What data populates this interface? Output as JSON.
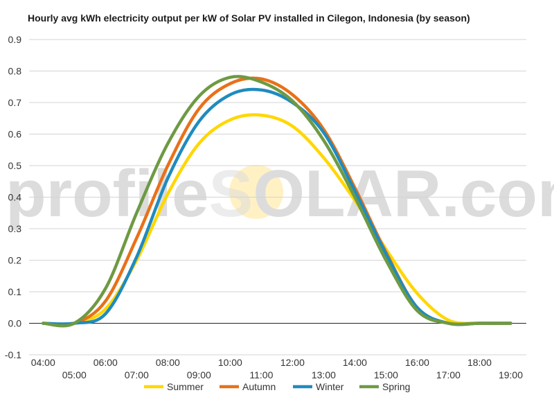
{
  "chart_data": {
    "type": "line",
    "title": "Hourly avg kWh electricity output per kW of Solar PV installed in Cilegon, Indonesia (by season)",
    "xlabel": "",
    "ylabel": "",
    "x": [
      4,
      5,
      6,
      7,
      8,
      9,
      10,
      11,
      12,
      13,
      14,
      15,
      16,
      17,
      18,
      19
    ],
    "x_tick_labels": [
      "04:00",
      "05:00",
      "06:00",
      "07:00",
      "08:00",
      "09:00",
      "10:00",
      "11:00",
      "12:00",
      "13:00",
      "14:00",
      "15:00",
      "16:00",
      "17:00",
      "18:00",
      "19:00"
    ],
    "xlim": [
      3.55,
      19.5
    ],
    "ylim": [
      -0.1,
      0.9
    ],
    "y_ticks": [
      -0.1,
      0.0,
      0.1,
      0.2,
      0.3,
      0.4,
      0.5,
      0.6,
      0.7,
      0.8,
      0.9
    ],
    "y_tick_labels": [
      "-0.1",
      "0.0",
      "0.1",
      "0.2",
      "0.3",
      "0.4",
      "0.5",
      "0.6",
      "0.7",
      "0.8",
      "0.9"
    ],
    "grid": true,
    "legend_position": "bottom",
    "series": [
      {
        "name": "Summer",
        "color": "#FFD700",
        "values": [
          0.0,
          0.0,
          0.045,
          0.2,
          0.41,
          0.57,
          0.645,
          0.66,
          0.625,
          0.525,
          0.39,
          0.235,
          0.095,
          0.01,
          0.0,
          0.0
        ]
      },
      {
        "name": "Autumn",
        "color": "#E8711A",
        "values": [
          0.0,
          0.0,
          0.07,
          0.27,
          0.5,
          0.68,
          0.76,
          0.775,
          0.725,
          0.615,
          0.43,
          0.225,
          0.05,
          0.0,
          0.0,
          0.0
        ]
      },
      {
        "name": "Winter",
        "color": "#1F8BBF",
        "values": [
          0.0,
          0.0,
          0.03,
          0.21,
          0.46,
          0.64,
          0.725,
          0.74,
          0.7,
          0.605,
          0.42,
          0.22,
          0.05,
          0.0,
          0.0,
          0.0
        ]
      },
      {
        "name": "Spring",
        "color": "#6E9A43",
        "values": [
          0.0,
          0.0,
          0.11,
          0.35,
          0.57,
          0.72,
          0.78,
          0.765,
          0.705,
          0.58,
          0.4,
          0.2,
          0.04,
          0.0,
          0.0,
          0.0
        ]
      }
    ]
  },
  "watermark": {
    "text_left": "profile",
    "text_mid": "S",
    "text_right": "OLAR.com",
    "sun_color": "#FFF1C4"
  }
}
